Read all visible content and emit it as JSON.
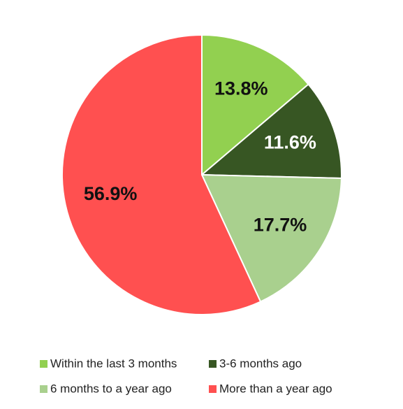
{
  "chart_data": {
    "type": "pie",
    "categories": [
      "Within the last 3 months",
      "3-6 months ago",
      "6 months to a year ago",
      "More than a year ago"
    ],
    "values": [
      13.8,
      11.6,
      17.7,
      56.9
    ],
    "value_labels": [
      "13.8%",
      "11.6%",
      "17.7%",
      "56.9%"
    ],
    "colors": [
      "#92d050",
      "#375623",
      "#a9d08e",
      "#ff5050"
    ]
  }
}
